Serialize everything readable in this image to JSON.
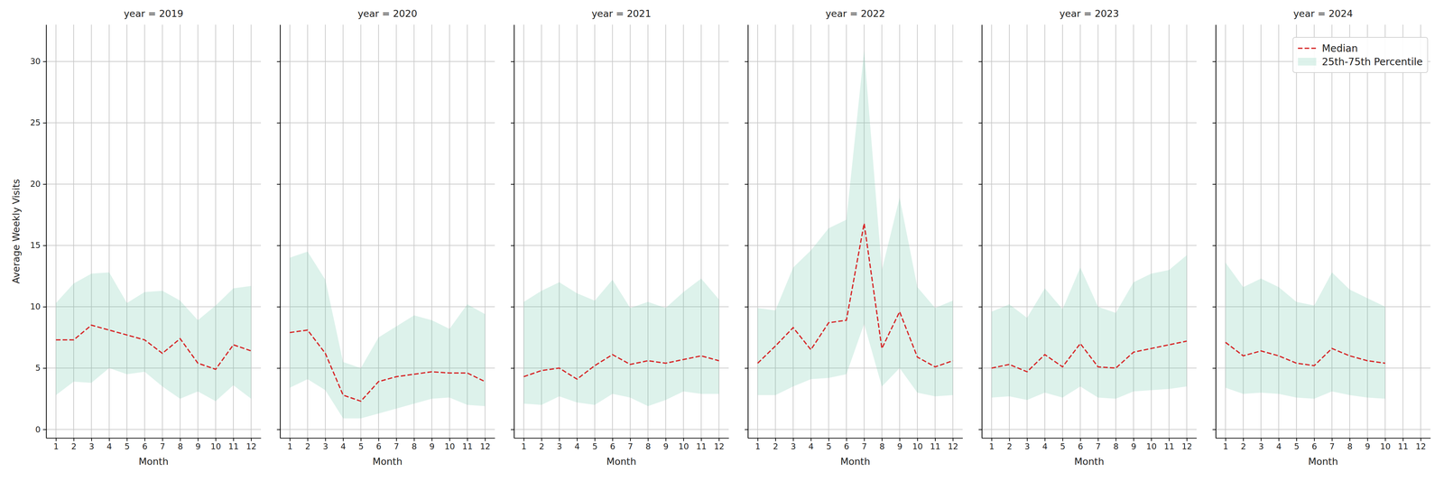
{
  "chart_data": [
    {
      "type": "line",
      "title": "year = 2019",
      "x_label": "Month",
      "y_label": "Average Weekly Visits",
      "x": [
        1,
        2,
        3,
        4,
        5,
        6,
        7,
        8,
        9,
        10,
        11,
        12
      ],
      "xlim": [
        0.45,
        12.55
      ],
      "xticks": [
        1,
        2,
        3,
        4,
        5,
        6,
        7,
        8,
        9,
        10,
        11,
        12
      ],
      "ylim": [
        -0.7,
        33.0
      ],
      "yticks": [
        0,
        5,
        10,
        15,
        20,
        25,
        30
      ],
      "grid": true,
      "series": [
        {
          "name": "Median",
          "type": "line",
          "color": "#d62728",
          "line_style": "dashed",
          "values": [
            7.3,
            7.3,
            8.5,
            8.1,
            7.7,
            7.3,
            6.2,
            7.4,
            5.4,
            4.9,
            6.9,
            6.4
          ]
        },
        {
          "name": "25th-75th Percentile",
          "type": "band",
          "color": "#66c2a5",
          "lower": [
            2.8,
            3.9,
            3.8,
            5.0,
            4.5,
            4.7,
            3.5,
            2.5,
            3.1,
            2.3,
            3.6,
            2.5
          ],
          "upper": [
            10.3,
            11.9,
            12.7,
            12.8,
            10.3,
            11.2,
            11.3,
            10.5,
            8.9,
            10.1,
            11.5,
            11.7
          ]
        }
      ]
    },
    {
      "type": "line",
      "title": "year = 2020",
      "x_label": "Month",
      "tick_labels": "x",
      "x": [
        1,
        2,
        3,
        4,
        5,
        6,
        7,
        8,
        9,
        10,
        11,
        12
      ],
      "xlim": [
        0.45,
        12.55
      ],
      "xticks": [
        1,
        2,
        3,
        4,
        5,
        6,
        7,
        8,
        9,
        10,
        11,
        12
      ],
      "ylim": [
        -0.7,
        33.0
      ],
      "yticks": [
        0,
        5,
        10,
        15,
        20,
        25,
        30
      ],
      "grid": true,
      "series": [
        {
          "name": "Median",
          "type": "line",
          "color": "#d62728",
          "line_style": "dashed",
          "values": [
            7.9,
            8.1,
            6.2,
            2.8,
            2.3,
            3.9,
            4.3,
            4.5,
            4.7,
            4.6,
            4.6,
            3.9
          ]
        },
        {
          "name": "25th-75th Percentile",
          "type": "band",
          "color": "#66c2a5",
          "lower": [
            3.4,
            4.1,
            3.2,
            0.9,
            0.9,
            1.3,
            1.7,
            2.1,
            2.5,
            2.6,
            2.0,
            1.9
          ],
          "upper": [
            14.0,
            14.5,
            12.2,
            5.5,
            5.0,
            7.5,
            8.4,
            9.3,
            8.9,
            8.2,
            10.2,
            9.4
          ]
        }
      ]
    },
    {
      "type": "line",
      "title": "year = 2021",
      "x_label": "Month",
      "tick_labels": "x",
      "x": [
        1,
        2,
        3,
        4,
        5,
        6,
        7,
        8,
        9,
        10,
        11,
        12
      ],
      "xlim": [
        0.45,
        12.55
      ],
      "xticks": [
        1,
        2,
        3,
        4,
        5,
        6,
        7,
        8,
        9,
        10,
        11,
        12
      ],
      "ylim": [
        -0.7,
        33.0
      ],
      "yticks": [
        0,
        5,
        10,
        15,
        20,
        25,
        30
      ],
      "grid": true,
      "series": [
        {
          "name": "Median",
          "type": "line",
          "color": "#d62728",
          "line_style": "dashed",
          "values": [
            4.3,
            4.8,
            5.0,
            4.1,
            5.2,
            6.1,
            5.3,
            5.6,
            5.4,
            5.7,
            6.0,
            5.6
          ]
        },
        {
          "name": "25th-75th Percentile",
          "type": "band",
          "color": "#66c2a5",
          "lower": [
            2.1,
            2.0,
            2.7,
            2.2,
            2.0,
            2.9,
            2.6,
            1.9,
            2.4,
            3.1,
            2.9,
            2.9
          ],
          "upper": [
            10.4,
            11.3,
            12.0,
            11.1,
            10.5,
            12.2,
            9.9,
            10.4,
            9.9,
            11.2,
            12.3,
            10.6
          ]
        }
      ]
    },
    {
      "type": "line",
      "title": "year = 2022",
      "x_label": "Month",
      "tick_labels": "x",
      "x": [
        1,
        2,
        3,
        4,
        5,
        6,
        7,
        8,
        9,
        10,
        11,
        12
      ],
      "xlim": [
        0.45,
        12.55
      ],
      "xticks": [
        1,
        2,
        3,
        4,
        5,
        6,
        7,
        8,
        9,
        10,
        11,
        12
      ],
      "ylim": [
        -0.7,
        33.0
      ],
      "yticks": [
        0,
        5,
        10,
        15,
        20,
        25,
        30
      ],
      "grid": true,
      "series": [
        {
          "name": "Median",
          "type": "line",
          "color": "#d62728",
          "line_style": "dashed",
          "values": [
            5.4,
            6.8,
            8.3,
            6.5,
            8.7,
            8.9,
            16.8,
            6.6,
            9.6,
            5.9,
            5.1,
            5.6
          ]
        },
        {
          "name": "25th-75th Percentile",
          "type": "band",
          "color": "#66c2a5",
          "lower": [
            2.8,
            2.8,
            3.5,
            4.1,
            4.2,
            4.5,
            8.6,
            3.5,
            5.0,
            3.0,
            2.7,
            2.8
          ],
          "upper": [
            9.9,
            9.7,
            13.2,
            14.6,
            16.4,
            17.1,
            30.9,
            13.0,
            18.9,
            11.6,
            9.9,
            10.5
          ]
        }
      ]
    },
    {
      "type": "line",
      "title": "year = 2023",
      "x_label": "Month",
      "tick_labels": "x",
      "x": [
        1,
        2,
        3,
        4,
        5,
        6,
        7,
        8,
        9,
        10,
        11,
        12
      ],
      "xlim": [
        0.45,
        12.55
      ],
      "xticks": [
        1,
        2,
        3,
        4,
        5,
        6,
        7,
        8,
        9,
        10,
        11,
        12
      ],
      "ylim": [
        -0.7,
        33.0
      ],
      "yticks": [
        0,
        5,
        10,
        15,
        20,
        25,
        30
      ],
      "grid": true,
      "series": [
        {
          "name": "Median",
          "type": "line",
          "color": "#d62728",
          "line_style": "dashed",
          "values": [
            5.0,
            5.3,
            4.7,
            6.1,
            5.1,
            7.0,
            5.1,
            5.0,
            6.3,
            6.6,
            6.9,
            7.2
          ]
        },
        {
          "name": "25th-75th Percentile",
          "type": "band",
          "color": "#66c2a5",
          "lower": [
            2.6,
            2.7,
            2.4,
            3.0,
            2.6,
            3.5,
            2.6,
            2.5,
            3.1,
            3.2,
            3.3,
            3.5
          ],
          "upper": [
            9.6,
            10.2,
            9.1,
            11.5,
            9.8,
            13.2,
            10.0,
            9.5,
            12.0,
            12.7,
            13.0,
            14.2
          ]
        }
      ]
    },
    {
      "type": "line",
      "title": "year = 2024",
      "x_label": "Month",
      "tick_labels": "x",
      "legend": "upper right",
      "x": [
        1,
        2,
        3,
        4,
        5,
        6,
        7,
        8,
        9,
        10
      ],
      "xlim": [
        0.45,
        12.55
      ],
      "xticks": [
        1,
        2,
        3,
        4,
        5,
        6,
        7,
        8,
        9,
        10,
        11,
        12
      ],
      "ylim": [
        -0.7,
        33.0
      ],
      "yticks": [
        0,
        5,
        10,
        15,
        20,
        25,
        30
      ],
      "grid": true,
      "series": [
        {
          "name": "Median",
          "type": "line",
          "color": "#d62728",
          "line_style": "dashed",
          "values": [
            7.1,
            6.0,
            6.4,
            6.0,
            5.4,
            5.2,
            6.6,
            6.0,
            5.6,
            5.4
          ]
        },
        {
          "name": "25th-75th Percentile",
          "type": "band",
          "color": "#66c2a5",
          "lower": [
            3.4,
            2.9,
            3.0,
            2.9,
            2.6,
            2.5,
            3.1,
            2.8,
            2.6,
            2.5
          ],
          "upper": [
            13.6,
            11.6,
            12.3,
            11.6,
            10.4,
            10.1,
            12.8,
            11.4,
            10.7,
            10.0
          ]
        }
      ]
    }
  ]
}
